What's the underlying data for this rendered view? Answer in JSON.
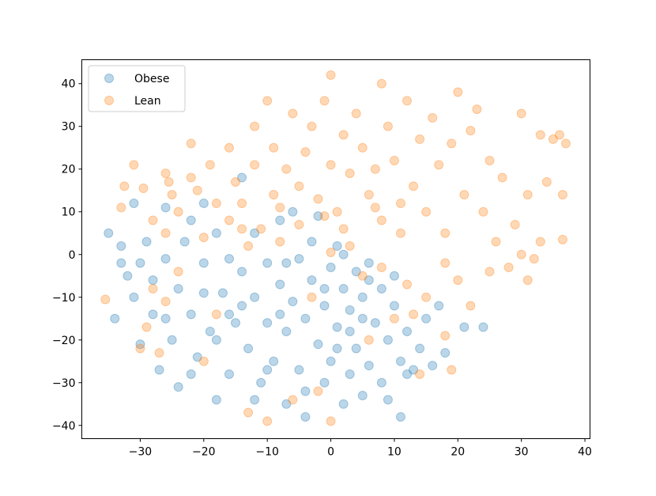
{
  "chart_data": {
    "type": "scatter",
    "title": "",
    "xlabel": "",
    "ylabel": "",
    "xlim": [
      -39.2,
      40.8
    ],
    "ylim": [
      -43.1,
      45.6
    ],
    "xticks": [
      -30,
      -20,
      -10,
      0,
      10,
      20,
      30,
      40
    ],
    "yticks": [
      -40,
      -30,
      -20,
      -10,
      0,
      10,
      20,
      30,
      40
    ],
    "grid": false,
    "legend_position": "top-left",
    "marker_alpha": 0.3,
    "series": [
      {
        "name": "Obese",
        "color": "#1f77b4",
        "points": [
          [
            -35,
            5
          ],
          [
            -34,
            -15
          ],
          [
            -33,
            -2
          ],
          [
            -33,
            2
          ],
          [
            -32,
            -5
          ],
          [
            -31,
            -10
          ],
          [
            -31,
            12
          ],
          [
            -30,
            -2
          ],
          [
            -30,
            -21
          ],
          [
            -29,
            3
          ],
          [
            -28,
            -14
          ],
          [
            -28,
            -6
          ],
          [
            -27,
            -27
          ],
          [
            -26,
            -1
          ],
          [
            -26,
            11
          ],
          [
            -25,
            -20
          ],
          [
            -24,
            -8
          ],
          [
            -24,
            -31
          ],
          [
            -23,
            3
          ],
          [
            -22,
            -14
          ],
          [
            -22,
            8
          ],
          [
            -21,
            -24
          ],
          [
            -20,
            -2
          ],
          [
            -20,
            12
          ],
          [
            -19,
            -18
          ],
          [
            -18,
            -34
          ],
          [
            -18,
            5
          ],
          [
            -17,
            -9
          ],
          [
            -16,
            -28
          ],
          [
            -16,
            -1
          ],
          [
            -15,
            -16
          ],
          [
            -14,
            -4
          ],
          [
            -14,
            18
          ],
          [
            -13,
            -22
          ],
          [
            -12,
            -10
          ],
          [
            -12,
            5
          ],
          [
            -11,
            -30
          ],
          [
            -10,
            -16
          ],
          [
            -10,
            -2
          ],
          [
            -9,
            -25
          ],
          [
            -8,
            -7
          ],
          [
            -8,
            8
          ],
          [
            -7,
            -35
          ],
          [
            -7,
            -18
          ],
          [
            -6,
            -11
          ],
          [
            -5,
            -1
          ],
          [
            -5,
            -27
          ],
          [
            -4,
            -38
          ],
          [
            -4,
            -15
          ],
          [
            -3,
            -6
          ],
          [
            -3,
            3
          ],
          [
            -2,
            -21
          ],
          [
            -1,
            -30
          ],
          [
            -1,
            -12
          ],
          [
            0,
            -3
          ],
          [
            0,
            -25
          ],
          [
            1,
            2
          ],
          [
            1,
            -17
          ],
          [
            2,
            -35
          ],
          [
            2,
            -8
          ],
          [
            3,
            -28
          ],
          [
            3,
            -13
          ],
          [
            4,
            -4
          ],
          [
            4,
            -22
          ],
          [
            5,
            -33
          ],
          [
            5,
            -10
          ],
          [
            6,
            -2
          ],
          [
            6,
            -26
          ],
          [
            7,
            -16
          ],
          [
            8,
            -8
          ],
          [
            8,
            -30
          ],
          [
            9,
            -20
          ],
          [
            10,
            -12
          ],
          [
            11,
            -38
          ],
          [
            11,
            -25
          ],
          [
            12,
            -18
          ],
          [
            13,
            -27
          ],
          [
            14,
            -22
          ],
          [
            15,
            -15
          ],
          [
            16,
            -26
          ],
          [
            17,
            -12
          ],
          [
            18,
            -23
          ],
          [
            21,
            -17
          ],
          [
            24,
            -17
          ],
          [
            -2,
            9
          ],
          [
            -6,
            10
          ],
          [
            2,
            0
          ],
          [
            6,
            -6
          ],
          [
            -16,
            -14
          ],
          [
            -20,
            -9
          ],
          [
            -26,
            -15
          ],
          [
            -12,
            -34
          ],
          [
            -4,
            -32
          ],
          [
            9,
            -34
          ],
          [
            -10,
            -27
          ],
          [
            -14,
            -12
          ],
          [
            1,
            -22
          ],
          [
            3,
            -18
          ],
          [
            -1,
            -8
          ],
          [
            -7,
            -2
          ],
          [
            -18,
            -20
          ],
          [
            -22,
            -28
          ],
          [
            -8,
            -14
          ],
          [
            5,
            -15
          ],
          [
            10,
            -5
          ],
          [
            12,
            -28
          ]
        ]
      },
      {
        "name": "Lean",
        "color": "#ff7f0e",
        "points": [
          [
            -35.5,
            -10.5
          ],
          [
            -32.5,
            16
          ],
          [
            -31,
            21
          ],
          [
            -33,
            11
          ],
          [
            -29.5,
            15.5
          ],
          [
            -28,
            8
          ],
          [
            -26,
            19
          ],
          [
            -25.5,
            17
          ],
          [
            -25,
            14
          ],
          [
            -24,
            10
          ],
          [
            -22,
            18
          ],
          [
            -21,
            15
          ],
          [
            -19,
            21
          ],
          [
            -18,
            12
          ],
          [
            -16,
            25
          ],
          [
            -15,
            17
          ],
          [
            -14,
            12
          ],
          [
            -12,
            21
          ],
          [
            -12,
            30
          ],
          [
            -11,
            6
          ],
          [
            -10,
            36
          ],
          [
            -9,
            14
          ],
          [
            -9,
            25
          ],
          [
            -8,
            11
          ],
          [
            -7,
            20
          ],
          [
            -6,
            33
          ],
          [
            -5,
            16
          ],
          [
            -5,
            7
          ],
          [
            -4,
            24
          ],
          [
            -3,
            30
          ],
          [
            -2,
            13
          ],
          [
            -1,
            36
          ],
          [
            0,
            42
          ],
          [
            0,
            21
          ],
          [
            1,
            10
          ],
          [
            2,
            28
          ],
          [
            3,
            19
          ],
          [
            4,
            33
          ],
          [
            5,
            25
          ],
          [
            6,
            14
          ],
          [
            7,
            20
          ],
          [
            8,
            40
          ],
          [
            8,
            8
          ],
          [
            9,
            30
          ],
          [
            10,
            22
          ],
          [
            11,
            5
          ],
          [
            12,
            36
          ],
          [
            13,
            16
          ],
          [
            14,
            27
          ],
          [
            15,
            10
          ],
          [
            16,
            32
          ],
          [
            17,
            21
          ],
          [
            18,
            5
          ],
          [
            19,
            26
          ],
          [
            20,
            38
          ],
          [
            21,
            14
          ],
          [
            22,
            29
          ],
          [
            23,
            34
          ],
          [
            24,
            10
          ],
          [
            25,
            22
          ],
          [
            26,
            3
          ],
          [
            27,
            18
          ],
          [
            28,
            -3
          ],
          [
            29,
            7
          ],
          [
            30,
            33
          ],
          [
            31,
            14
          ],
          [
            32,
            -1
          ],
          [
            33,
            28
          ],
          [
            34,
            17
          ],
          [
            35,
            27
          ],
          [
            36,
            28
          ],
          [
            37,
            26
          ],
          [
            36.5,
            14
          ],
          [
            36.5,
            3.5
          ],
          [
            33,
            3
          ],
          [
            31,
            -6
          ],
          [
            30,
            0
          ],
          [
            25,
            -4
          ],
          [
            22,
            -12
          ],
          [
            20,
            -6
          ],
          [
            18,
            -2
          ],
          [
            15,
            -10
          ],
          [
            13,
            -14
          ],
          [
            12,
            -7
          ],
          [
            10,
            -15
          ],
          [
            8,
            -3
          ],
          [
            6,
            -20
          ],
          [
            18,
            -19
          ],
          [
            19,
            -27
          ],
          [
            14,
            -28
          ],
          [
            -13,
            -37
          ],
          [
            -10,
            -39
          ],
          [
            -2,
            -32
          ],
          [
            0,
            -39
          ],
          [
            -27,
            -23
          ],
          [
            -30,
            -22
          ],
          [
            -29,
            -17
          ],
          [
            -26,
            -11
          ],
          [
            -24,
            -4
          ],
          [
            -26,
            5
          ],
          [
            -28,
            -8
          ],
          [
            -18,
            -14
          ],
          [
            -20,
            -25
          ],
          [
            -16,
            8
          ],
          [
            -13,
            2
          ],
          [
            -20,
            4
          ],
          [
            -6,
            -34
          ],
          [
            -3,
            -10
          ],
          [
            5,
            -5
          ],
          [
            3,
            2
          ],
          [
            -1,
            9
          ],
          [
            -8,
            3
          ],
          [
            2,
            6
          ],
          [
            7,
            11
          ],
          [
            11,
            12
          ],
          [
            -22,
            26
          ],
          [
            -14,
            6
          ],
          [
            0,
            0.5
          ]
        ]
      }
    ]
  }
}
